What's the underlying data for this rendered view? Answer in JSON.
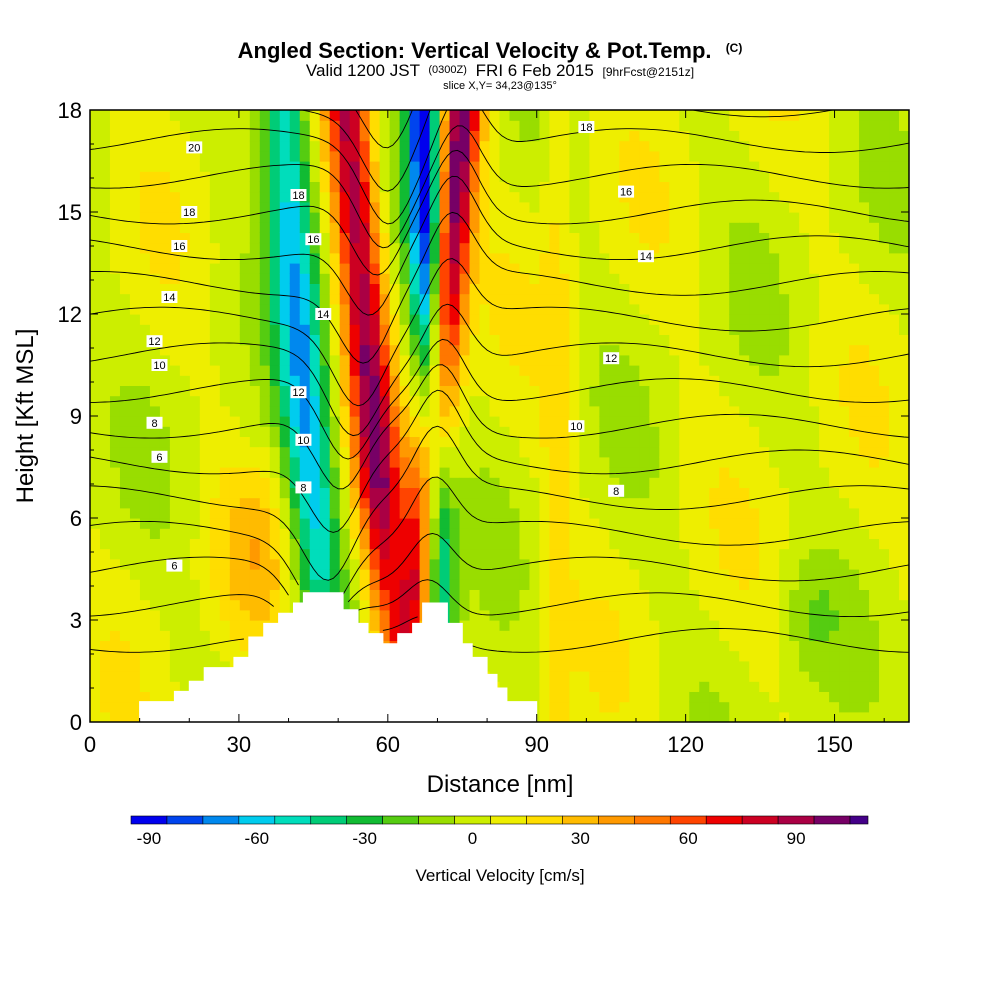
{
  "title": {
    "main": "Angled Section: Vertical Velocity & Pot.Temp.",
    "main_tag": "(C)",
    "valid_prefix": "Valid 1200 JST",
    "valid_utc": "(0300Z)",
    "valid_date": "FRI 6 Feb 2015",
    "forecast": "[9hrFcst@2151z]",
    "slice": "slice X,Y= 34,23@135°"
  },
  "chart_data": {
    "type": "heatmap",
    "xlabel": "Distance [nm]",
    "ylabel": "Height [Kft MSL]",
    "xlim": [
      0,
      165
    ],
    "ylim": [
      0,
      18
    ],
    "x_ticks": [
      {
        "value": 0,
        "label": "0"
      },
      {
        "value": 30,
        "label": "30"
      },
      {
        "value": 60,
        "label": "60"
      },
      {
        "value": 90,
        "label": "90"
      },
      {
        "value": 120,
        "label": "120"
      },
      {
        "value": 150,
        "label": "150"
      }
    ],
    "y_ticks": [
      {
        "value": 0,
        "label": "0"
      },
      {
        "value": 3,
        "label": "3"
      },
      {
        "value": 6,
        "label": "6"
      },
      {
        "value": 9,
        "label": "9"
      },
      {
        "value": 12,
        "label": "12"
      },
      {
        "value": 15,
        "label": "15"
      },
      {
        "value": 18,
        "label": "18"
      }
    ],
    "colorbar": {
      "title": "Vertical Velocity [cm/s]",
      "min": -95,
      "max": 110,
      "levels": [
        -95,
        -85,
        -75,
        -65,
        -55,
        -45,
        -35,
        -25,
        -15,
        -5,
        5,
        15,
        25,
        35,
        45,
        55,
        65,
        75,
        85,
        95,
        105,
        110
      ],
      "colors": [
        "#0000ee",
        "#0044ee",
        "#0088ee",
        "#00ccee",
        "#00ddbb",
        "#00cc77",
        "#11bb33",
        "#55cc11",
        "#99dd00",
        "#ccee00",
        "#eeee00",
        "#ffdd00",
        "#ffbb00",
        "#ff9900",
        "#ff7700",
        "#ff4400",
        "#ee0000",
        "#cc0022",
        "#aa0044",
        "#770066",
        "#440088"
      ],
      "tick_labels": [
        {
          "value": -90,
          "label": "-90"
        },
        {
          "value": -60,
          "label": "-60"
        },
        {
          "value": -30,
          "label": "-30"
        },
        {
          "value": 0,
          "label": "0"
        },
        {
          "value": 30,
          "label": "30"
        },
        {
          "value": 60,
          "label": "60"
        },
        {
          "value": 90,
          "label": "90"
        }
      ]
    },
    "contour_labels": [
      {
        "x": 21,
        "y": 16.9,
        "label": "20"
      },
      {
        "x": 20,
        "y": 15.0,
        "label": "18"
      },
      {
        "x": 18,
        "y": 14.0,
        "label": "16"
      },
      {
        "x": 16,
        "y": 12.5,
        "label": "14"
      },
      {
        "x": 13,
        "y": 11.2,
        "label": "12"
      },
      {
        "x": 14,
        "y": 10.5,
        "label": "10"
      },
      {
        "x": 13,
        "y": 8.8,
        "label": "8"
      },
      {
        "x": 14,
        "y": 7.8,
        "label": "6"
      },
      {
        "x": 17,
        "y": 4.6,
        "label": "6"
      },
      {
        "x": 42,
        "y": 15.5,
        "label": "18"
      },
      {
        "x": 45,
        "y": 14.2,
        "label": "16"
      },
      {
        "x": 47,
        "y": 12.0,
        "label": "14"
      },
      {
        "x": 42,
        "y": 9.7,
        "label": "12"
      },
      {
        "x": 43,
        "y": 8.3,
        "label": "10"
      },
      {
        "x": 43,
        "y": 6.9,
        "label": "8"
      },
      {
        "x": 100,
        "y": 17.5,
        "label": "18"
      },
      {
        "x": 108,
        "y": 15.6,
        "label": "16"
      },
      {
        "x": 112,
        "y": 13.7,
        "label": "14"
      },
      {
        "x": 105,
        "y": 10.7,
        "label": "12"
      },
      {
        "x": 98,
        "y": 8.7,
        "label": "10"
      },
      {
        "x": 106,
        "y": 6.8,
        "label": "8"
      }
    ],
    "terrain": [
      [
        0,
        0
      ],
      [
        10,
        0
      ],
      [
        10,
        0.6
      ],
      [
        17,
        0.6
      ],
      [
        17,
        0.9
      ],
      [
        20,
        0.9
      ],
      [
        20,
        1.2
      ],
      [
        23,
        1.2
      ],
      [
        23,
        1.6
      ],
      [
        29,
        1.6
      ],
      [
        29,
        1.9
      ],
      [
        32,
        1.9
      ],
      [
        32,
        2.5
      ],
      [
        35,
        2.5
      ],
      [
        35,
        2.9
      ],
      [
        38,
        2.9
      ],
      [
        38,
        3.2
      ],
      [
        41,
        3.2
      ],
      [
        41,
        3.5
      ],
      [
        43,
        3.5
      ],
      [
        43,
        3.8
      ],
      [
        51,
        3.8
      ],
      [
        51,
        3.3
      ],
      [
        54,
        3.3
      ],
      [
        54,
        2.9
      ],
      [
        56,
        2.9
      ],
      [
        56,
        2.6
      ],
      [
        59,
        2.6
      ],
      [
        59,
        2.3
      ],
      [
        62,
        2.3
      ],
      [
        62,
        2.6
      ],
      [
        65,
        2.6
      ],
      [
        65,
        2.9
      ],
      [
        67,
        2.9
      ],
      [
        67,
        3.5
      ],
      [
        72,
        3.5
      ],
      [
        72,
        2.9
      ],
      [
        75,
        2.9
      ],
      [
        75,
        2.3
      ],
      [
        77,
        2.3
      ],
      [
        77,
        1.9
      ],
      [
        80,
        1.9
      ],
      [
        80,
        1.4
      ],
      [
        82,
        1.4
      ],
      [
        82,
        1.0
      ],
      [
        84,
        1.0
      ],
      [
        84,
        0.6
      ],
      [
        90,
        0.6
      ],
      [
        90,
        0
      ],
      [
        165,
        0
      ]
    ],
    "updraft_bands": [
      {
        "x_top": 52,
        "x_bottom": 62,
        "width": 4.5,
        "peak": 85
      },
      {
        "x_top": 75,
        "x_bottom": 64,
        "width": 4.0,
        "peak": 100
      }
    ],
    "downdraft_bands": [
      {
        "x_top": 39,
        "x_bottom": 48,
        "width": 5.0,
        "peak": -65
      },
      {
        "x_top": 67,
        "x_bottom": 71,
        "width": 3.5,
        "peak": -95
      }
    ]
  }
}
